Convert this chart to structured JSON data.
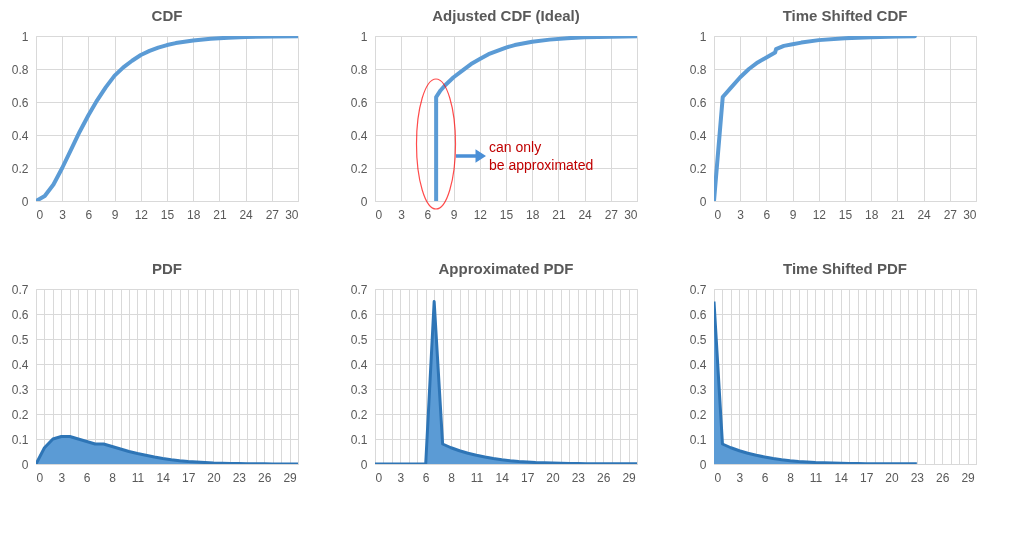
{
  "chart_data": [
    {
      "type": "line",
      "title": "CDF",
      "color": "#5b9bd5",
      "grid": true,
      "x": [
        0,
        1,
        2,
        3,
        4,
        5,
        6,
        7,
        8,
        9,
        10,
        11,
        12,
        13,
        14,
        15,
        16,
        18,
        20,
        22,
        24,
        27,
        30
      ],
      "values": [
        0,
        0.03,
        0.1,
        0.2,
        0.31,
        0.42,
        0.52,
        0.61,
        0.69,
        0.76,
        0.81,
        0.85,
        0.885,
        0.91,
        0.93,
        0.945,
        0.957,
        0.973,
        0.983,
        0.99,
        0.994,
        0.997,
        0.999
      ],
      "xlim": [
        0,
        30
      ],
      "xticks": [
        0,
        3,
        6,
        9,
        12,
        15,
        18,
        21,
        24,
        27,
        30
      ],
      "ylim": [
        0,
        1
      ],
      "yticks": [
        0,
        0.2,
        0.4,
        0.6,
        0.8,
        1
      ]
    },
    {
      "type": "line",
      "title": "Adjusted CDF (Ideal)",
      "color": "#5b9bd5",
      "grid": true,
      "x": [
        7,
        7,
        7.5,
        8,
        9,
        10,
        11,
        12,
        13,
        14,
        15,
        16,
        18,
        20,
        22,
        24,
        27,
        30
      ],
      "values": [
        0,
        0.63,
        0.67,
        0.7,
        0.75,
        0.79,
        0.83,
        0.86,
        0.89,
        0.91,
        0.93,
        0.945,
        0.965,
        0.978,
        0.987,
        0.992,
        0.996,
        0.998
      ],
      "xlim": [
        0,
        30
      ],
      "xticks": [
        0,
        3,
        6,
        9,
        12,
        15,
        18,
        21,
        24,
        27,
        30
      ],
      "ylim": [
        0,
        1
      ],
      "yticks": [
        0,
        0.2,
        0.4,
        0.6,
        0.8,
        1
      ],
      "annotations": [
        "can only be approximated"
      ]
    },
    {
      "type": "line",
      "title": "Time Shifted CDF",
      "color": "#5b9bd5",
      "grid": true,
      "x": [
        0,
        1,
        2,
        3,
        4,
        5,
        6,
        7,
        7.1,
        8,
        9,
        10,
        12,
        15,
        18,
        21,
        23
      ],
      "values": [
        0,
        0.63,
        0.69,
        0.75,
        0.8,
        0.84,
        0.87,
        0.9,
        0.92,
        0.94,
        0.95,
        0.96,
        0.975,
        0.987,
        0.993,
        0.997,
        0.998
      ],
      "xlim": [
        0,
        30
      ],
      "xticks": [
        0,
        3,
        6,
        9,
        12,
        15,
        18,
        21,
        24,
        27,
        30
      ],
      "ylim": [
        0,
        1
      ],
      "yticks": [
        0,
        0.2,
        0.4,
        0.6,
        0.8,
        1
      ]
    },
    {
      "type": "area",
      "title": "PDF",
      "color": "#5b9bd5",
      "grid": true,
      "categories": [
        "0",
        null,
        null,
        "3",
        null,
        null,
        "6",
        null,
        null,
        "8",
        null,
        null,
        "11",
        null,
        null,
        "14",
        null,
        null,
        "17",
        null,
        null,
        "20",
        null,
        null,
        "23",
        null,
        null,
        "26",
        null,
        null,
        "29",
        null
      ],
      "values": [
        0,
        0.065,
        0.1,
        0.11,
        0.11,
        0.1,
        0.09,
        0.08,
        0.08,
        0.07,
        0.06,
        0.05,
        0.042,
        0.035,
        0.028,
        0.022,
        0.017,
        0.013,
        0.01,
        0.008,
        0.006,
        0.004,
        0.003,
        0.002,
        0.002,
        0.001,
        0.001,
        0.001,
        0,
        0,
        0,
        0
      ],
      "ylim": [
        0,
        0.7
      ],
      "yticks": [
        0,
        0.1,
        0.2,
        0.3,
        0.4,
        0.5,
        0.6,
        0.7
      ]
    },
    {
      "type": "area",
      "title": "Approximated PDF",
      "color": "#5b9bd5",
      "grid": true,
      "categories": [
        "0",
        null,
        null,
        "3",
        null,
        null,
        "6",
        null,
        null,
        "8",
        null,
        null,
        "11",
        null,
        null,
        "14",
        null,
        null,
        "17",
        null,
        null,
        "20",
        null,
        null,
        "23",
        null,
        null,
        "26",
        null,
        null,
        "29",
        null
      ],
      "values": [
        0,
        0,
        0,
        0,
        0,
        0,
        0,
        0.65,
        0.08,
        0.065,
        0.053,
        0.043,
        0.035,
        0.028,
        0.022,
        0.017,
        0.013,
        0.01,
        0.008,
        0.006,
        0.005,
        0.004,
        0.003,
        0.002,
        0.002,
        0.001,
        0.001,
        0.001,
        0.001,
        0.001,
        0.001,
        0.001
      ],
      "ylim": [
        0,
        0.7
      ],
      "yticks": [
        0,
        0.1,
        0.2,
        0.3,
        0.4,
        0.5,
        0.6,
        0.7
      ]
    },
    {
      "type": "area",
      "title": "Time Shifted PDF",
      "color": "#5b9bd5",
      "grid": true,
      "categories": [
        "0",
        null,
        null,
        "3",
        null,
        null,
        "6",
        null,
        null,
        "8",
        null,
        null,
        "11",
        null,
        null,
        "14",
        null,
        null,
        "17",
        null,
        null,
        "20",
        null,
        null,
        "23",
        null,
        null,
        "26",
        null,
        null,
        "29",
        null
      ],
      "values": [
        0.65,
        0.08,
        0.065,
        0.053,
        0.043,
        0.035,
        0.028,
        0.022,
        0.017,
        0.013,
        0.01,
        0.008,
        0.006,
        0.005,
        0.004,
        0.003,
        0.002,
        0.002,
        0.001,
        0.001,
        0.001,
        0.001,
        0.001,
        0.001,
        0.001,
        null,
        null,
        null,
        null,
        null,
        null,
        null
      ],
      "ylim": [
        0,
        0.7
      ],
      "yticks": [
        0,
        0.1,
        0.2,
        0.3,
        0.4,
        0.5,
        0.6,
        0.7
      ]
    }
  ]
}
